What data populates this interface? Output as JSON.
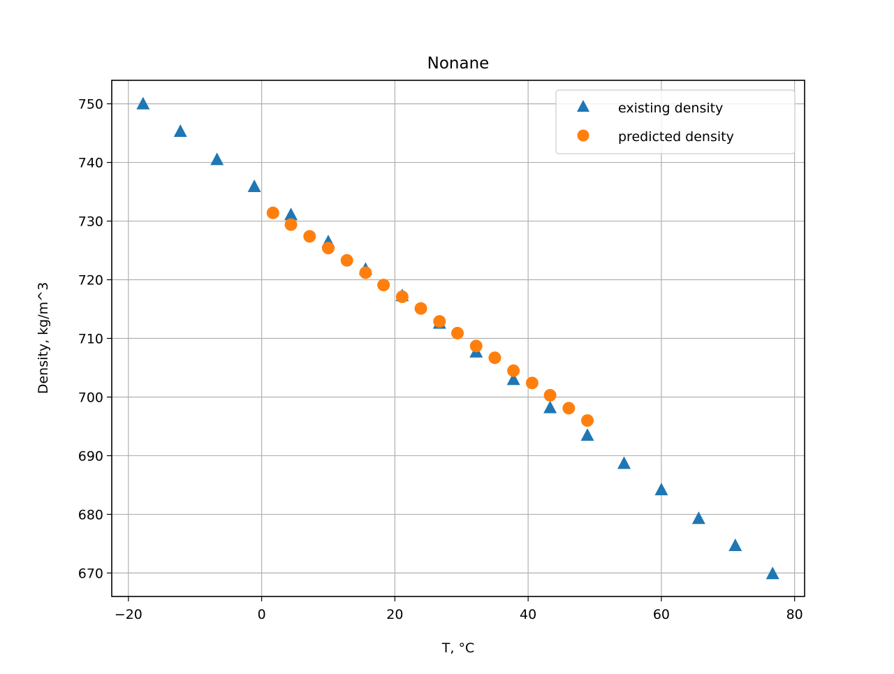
{
  "chart_data": {
    "type": "scatter",
    "title": "Nonane",
    "xlabel": "T, °C",
    "ylabel": "Density, kg/m^3",
    "xlim": [
      -22.5,
      81.5
    ],
    "ylim": [
      666,
      754
    ],
    "xticks": [
      -20,
      0,
      20,
      40,
      60,
      80
    ],
    "xtick_labels": [
      "−20",
      "0",
      "20",
      "40",
      "60",
      "80"
    ],
    "yticks": [
      670,
      680,
      690,
      700,
      710,
      720,
      730,
      740,
      750
    ],
    "ytick_labels": [
      "670",
      "680",
      "690",
      "700",
      "710",
      "720",
      "730",
      "740",
      "750"
    ],
    "grid": true,
    "legend_position": "top-right",
    "series": [
      {
        "name": "existing density",
        "marker": "triangle",
        "color": "#1f77b4",
        "x": [
          -17.8,
          -12.2,
          -6.7,
          -1.1,
          4.4,
          10.0,
          15.6,
          21.1,
          26.7,
          32.2,
          37.8,
          43.3,
          48.9,
          54.4,
          60.0,
          65.6,
          71.1,
          76.7
        ],
        "y": [
          750.0,
          745.3,
          740.5,
          735.9,
          731.1,
          726.5,
          721.8,
          717.3,
          712.6,
          707.7,
          703.0,
          698.2,
          693.5,
          688.7,
          684.2,
          679.3,
          674.7,
          669.9
        ]
      },
      {
        "name": "predicted density",
        "marker": "circle",
        "color": "#ff7f0e",
        "x": [
          1.7,
          4.4,
          7.2,
          10.0,
          12.8,
          15.6,
          18.3,
          21.1,
          23.9,
          26.7,
          29.4,
          32.2,
          35.0,
          37.8,
          40.6,
          43.3,
          46.1,
          48.9
        ],
        "y": [
          731.4,
          729.4,
          727.4,
          725.4,
          723.3,
          721.2,
          719.1,
          717.1,
          715.1,
          712.9,
          710.9,
          708.7,
          706.7,
          704.5,
          702.4,
          700.3,
          698.1,
          696.0
        ]
      }
    ]
  }
}
